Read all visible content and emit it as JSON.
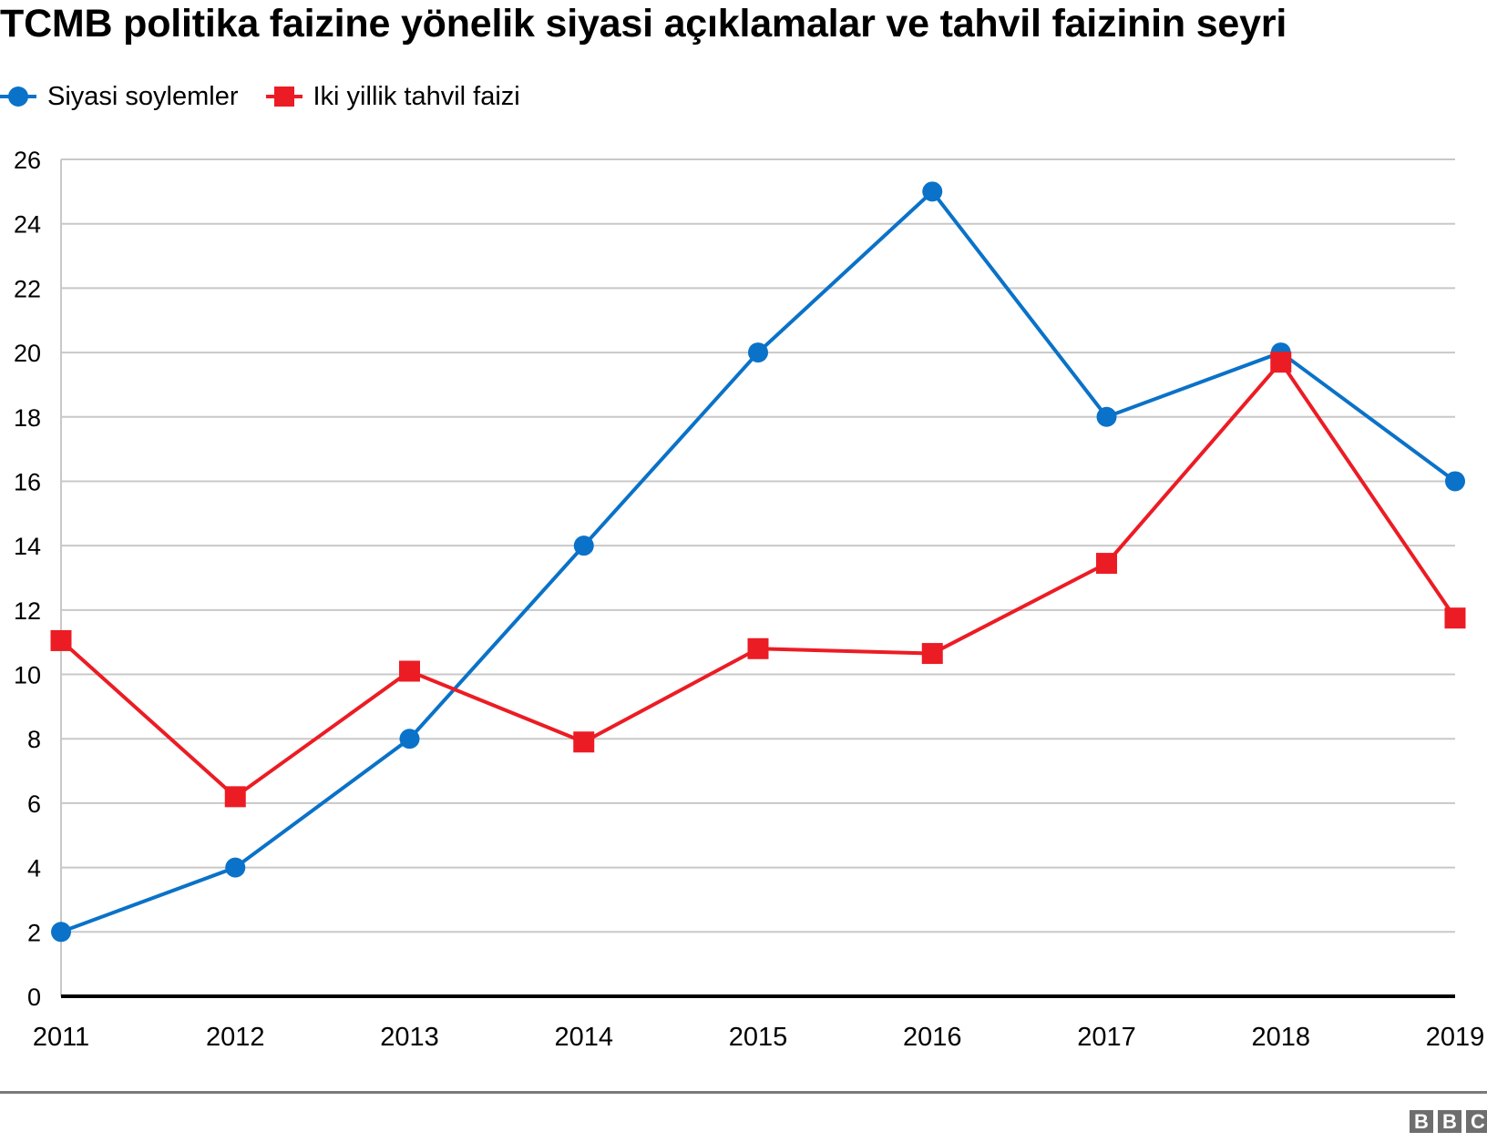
{
  "title": "TCMB politika faizine yönelik siyasi açıklamalar ve tahvil faizinin seyri",
  "legend": [
    {
      "label": "Siyasi soylemler",
      "color": "#0a72c8",
      "marker": "circle"
    },
    {
      "label": "Iki yillik tahvil faizi",
      "color": "#ec1c24",
      "marker": "square"
    }
  ],
  "footer": {
    "logo": [
      "B",
      "B",
      "C"
    ]
  },
  "chart_data": {
    "type": "line",
    "title": "TCMB politika faizine yönelik siyasi açıklamalar ve tahvil faizinin seyri",
    "xlabel": "",
    "ylabel": "",
    "categories": [
      "2011",
      "2012",
      "2013",
      "2014",
      "2015",
      "2016",
      "2017",
      "2018",
      "2019"
    ],
    "series": [
      {
        "name": "Siyasi soylemler",
        "color": "#0a72c8",
        "marker": "circle",
        "values": [
          2,
          4,
          8,
          14,
          20,
          25,
          18,
          20,
          16
        ]
      },
      {
        "name": "Iki yillik tahvil faizi",
        "color": "#ec1c24",
        "marker": "square",
        "values": [
          11.05,
          6.2,
          10.1,
          7.9,
          10.8,
          10.65,
          13.45,
          19.7,
          11.75
        ]
      }
    ],
    "ylim": [
      0,
      26
    ],
    "yticks": [
      0,
      2,
      4,
      6,
      8,
      10,
      12,
      14,
      16,
      18,
      20,
      22,
      24,
      26
    ],
    "grid": true,
    "legend_position": "top-left"
  }
}
